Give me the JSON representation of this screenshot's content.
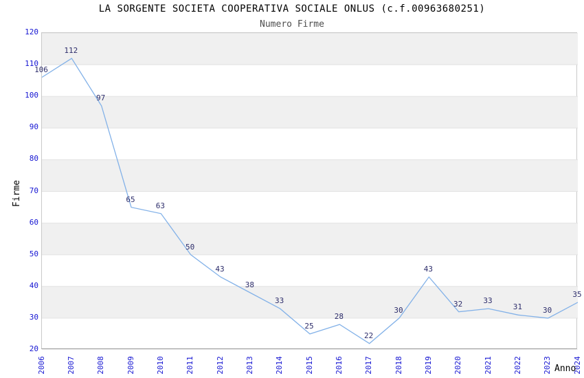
{
  "chart_data": {
    "type": "line",
    "title": "LA SORGENTE SOCIETA COOPERATIVA SOCIALE ONLUS (c.f.00963680251)",
    "subtitle": "Numero Firme",
    "xlabel": "Anno",
    "ylabel": "Firme",
    "categories": [
      "2006",
      "2007",
      "2008",
      "2009",
      "2010",
      "2011",
      "2012",
      "2013",
      "2014",
      "2015",
      "2016",
      "2017",
      "2018",
      "2019",
      "2020",
      "2021",
      "2022",
      "2023",
      "2024"
    ],
    "values": [
      106,
      112,
      97,
      65,
      63,
      50,
      43,
      38,
      33,
      25,
      28,
      22,
      30,
      43,
      32,
      33,
      31,
      30,
      35
    ],
    "ylim": [
      20,
      120
    ],
    "ytick_step": 10,
    "grid": "horizontal",
    "background_bands": true,
    "legend_position": "none",
    "colors": {
      "line": "#82b1e8",
      "tick_label": "#1414d2",
      "data_label": "#2d2d6b",
      "band": "#f0f0f0",
      "gridline": "#e2e2e2",
      "title": "#000000",
      "subtitle": "#4d4d4d",
      "axis_title": "#000000",
      "plot_border": "#c9c9c9",
      "bottom_spine": "#999999"
    }
  }
}
